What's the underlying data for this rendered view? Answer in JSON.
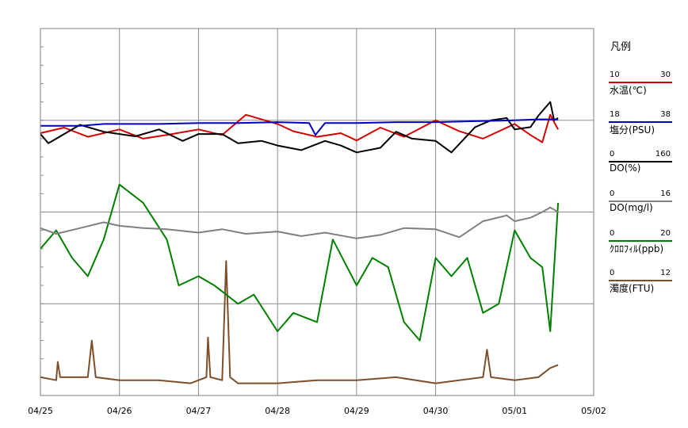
{
  "chart_data": {
    "type": "line",
    "x_ticks": [
      "04/25",
      "04/26",
      "04/27",
      "04/28",
      "04/29",
      "04/30",
      "05/01",
      "05/02"
    ],
    "x_range": [
      "04/25",
      "05/02"
    ],
    "grid": true,
    "legend_position": "right",
    "legend_title": "凡例",
    "series": [
      {
        "name": "水温(℃)",
        "color": "#d40000",
        "min": 10,
        "max": 30,
        "min_label": "10",
        "max_label": "30",
        "t": [
          0,
          0.3,
          0.6,
          1.0,
          1.3,
          1.6,
          2.0,
          2.3,
          2.6,
          3.0,
          3.2,
          3.5,
          3.8,
          4.0,
          4.3,
          4.6,
          5.0,
          5.3,
          5.6,
          6.0,
          6.2,
          6.35,
          6.45,
          6.55
        ],
        "values": [
          24.3,
          24.6,
          24.1,
          24.5,
          24.0,
          24.2,
          24.5,
          24.2,
          25.3,
          24.8,
          24.4,
          24.1,
          24.3,
          23.9,
          24.6,
          24.1,
          25.0,
          24.4,
          24.0,
          24.8,
          24.2,
          23.8,
          25.3,
          24.5
        ]
      },
      {
        "name": "塩分(PSU)",
        "color": "#0000c0",
        "min": 18,
        "max": 38,
        "min_label": "18",
        "max_label": "38",
        "t": [
          0,
          0.5,
          0.8,
          1.5,
          2.0,
          2.5,
          3.0,
          3.4,
          3.48,
          3.6,
          4.0,
          4.5,
          5.0,
          5.5,
          6.0,
          6.3,
          6.55
        ],
        "values": [
          32.7,
          32.7,
          32.8,
          32.8,
          32.85,
          32.85,
          32.9,
          32.85,
          32.2,
          32.85,
          32.85,
          32.9,
          32.9,
          32.95,
          33.0,
          33.05,
          33.05
        ]
      },
      {
        "name": "DO(%)",
        "color": "#000000",
        "min": 0,
        "max": 160,
        "min_label": "0",
        "max_label": "160",
        "t": [
          0,
          0.1,
          0.3,
          0.5,
          0.8,
          1.0,
          1.2,
          1.5,
          1.8,
          2.0,
          2.3,
          2.5,
          2.8,
          3.0,
          3.3,
          3.6,
          3.8,
          4.0,
          4.3,
          4.5,
          4.7,
          5.0,
          5.2,
          5.5,
          5.7,
          5.9,
          6.0,
          6.2,
          6.3,
          6.45,
          6.5,
          6.55
        ],
        "values": [
          114,
          110,
          114,
          118,
          115,
          114,
          113,
          116,
          111,
          114,
          114,
          110,
          111,
          109,
          107,
          111,
          109,
          106,
          108,
          115,
          112,
          111,
          106,
          117,
          120,
          121,
          116,
          117,
          122,
          128,
          120,
          121
        ]
      },
      {
        "name": "DO(mg/l)",
        "color": "#808080",
        "min": 0,
        "max": 16,
        "min_label": "0",
        "max_label": "16",
        "t": [
          0,
          0.2,
          0.5,
          0.8,
          1.0,
          1.3,
          1.6,
          2.0,
          2.3,
          2.6,
          3.0,
          3.3,
          3.6,
          4.0,
          4.3,
          4.6,
          5.0,
          5.3,
          5.6,
          5.9,
          6.0,
          6.2,
          6.35,
          6.45,
          6.55
        ],
        "values": [
          7.3,
          7.05,
          7.3,
          7.55,
          7.4,
          7.3,
          7.25,
          7.1,
          7.25,
          7.05,
          7.15,
          6.95,
          7.1,
          6.85,
          7.0,
          7.3,
          7.25,
          6.9,
          7.6,
          7.85,
          7.6,
          7.75,
          8.0,
          8.2,
          8.0
        ]
      },
      {
        "name": "ｸﾛﾛﾌｨﾙ(ppb)",
        "color": "#008000",
        "min": 0,
        "max": 20,
        "min_label": "0",
        "max_label": "20",
        "t": [
          0,
          0.2,
          0.4,
          0.6,
          0.8,
          1.0,
          1.3,
          1.6,
          1.75,
          2.0,
          2.2,
          2.5,
          2.7,
          3.0,
          3.2,
          3.5,
          3.7,
          4.0,
          4.2,
          4.4,
          4.6,
          4.8,
          5.0,
          5.2,
          5.4,
          5.6,
          5.8,
          6.0,
          6.2,
          6.35,
          6.45,
          6.55
        ],
        "values": [
          8.0,
          9.0,
          7.5,
          6.5,
          8.5,
          11.5,
          10.5,
          8.5,
          6.0,
          6.5,
          6.0,
          5.0,
          5.5,
          3.5,
          4.5,
          4.0,
          8.5,
          6.0,
          7.5,
          7.0,
          4.0,
          3.0,
          7.5,
          6.5,
          7.5,
          4.5,
          5.0,
          9.0,
          7.5,
          7.0,
          3.5,
          10.5
        ]
      },
      {
        "name": "濁度(FTU)",
        "color": "#7f4f2a",
        "min": 0,
        "max": 12,
        "min_label": "0",
        "max_label": "12",
        "t": [
          0,
          0.2,
          0.22,
          0.25,
          0.6,
          0.65,
          0.7,
          1.0,
          1.5,
          1.9,
          2.1,
          2.12,
          2.15,
          2.3,
          2.35,
          2.4,
          2.5,
          3.0,
          3.5,
          4.0,
          4.5,
          5.0,
          5.3,
          5.6,
          5.65,
          5.7,
          6.0,
          6.3,
          6.45,
          6.55
        ],
        "values": [
          0.6,
          0.5,
          1.1,
          0.6,
          0.6,
          1.8,
          0.6,
          0.5,
          0.5,
          0.4,
          0.6,
          1.9,
          0.6,
          0.5,
          4.4,
          0.6,
          0.4,
          0.4,
          0.5,
          0.5,
          0.6,
          0.4,
          0.5,
          0.6,
          1.5,
          0.6,
          0.5,
          0.6,
          0.9,
          1.0
        ]
      }
    ]
  }
}
